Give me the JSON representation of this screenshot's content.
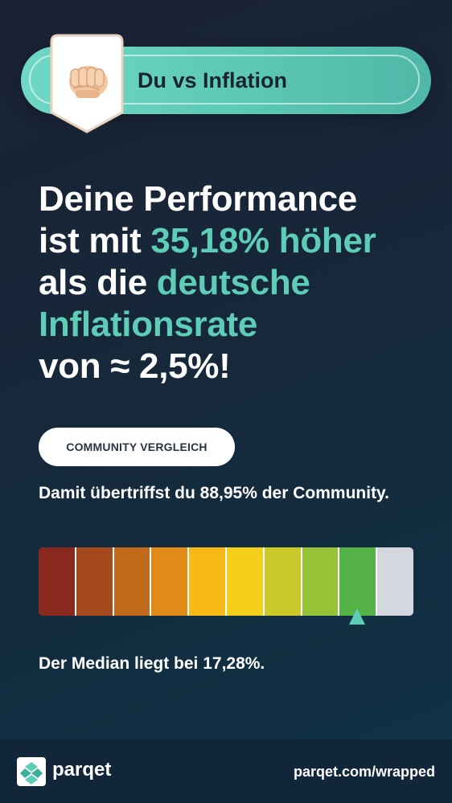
{
  "header": {
    "title": "Du vs Inflation",
    "badge_icon": "fist-icon"
  },
  "headline": {
    "line1": "Deine Performance",
    "line2_prefix": "ist mit ",
    "line2_accent": "35,18% höher",
    "line3_prefix": "als die ",
    "line3_accent": "deutsche",
    "line4_accent": "Inflationsrate",
    "line5": "von ≈ 2,5%!"
  },
  "community": {
    "chip_label": "COMMUNITY VERGLEICH",
    "description": "Damit übertriffst du 88,95% der Community.",
    "percentile": 88.95,
    "marker_segment": 9,
    "segment_count": 10,
    "segment_colors": [
      "#8a2a1f",
      "#a64a1e",
      "#c26a1c",
      "#e08a18",
      "#f6b915",
      "#f3cf1c",
      "#cbc92a",
      "#95c236",
      "#55b246",
      "#d4d7df"
    ],
    "median_text": "Der Median liegt bei 17,28%."
  },
  "footer": {
    "brand": "parqet",
    "url": "parqet.com/wrapped"
  },
  "colors": {
    "accent": "#5ecdb6",
    "pill": "#5cc9b4"
  }
}
